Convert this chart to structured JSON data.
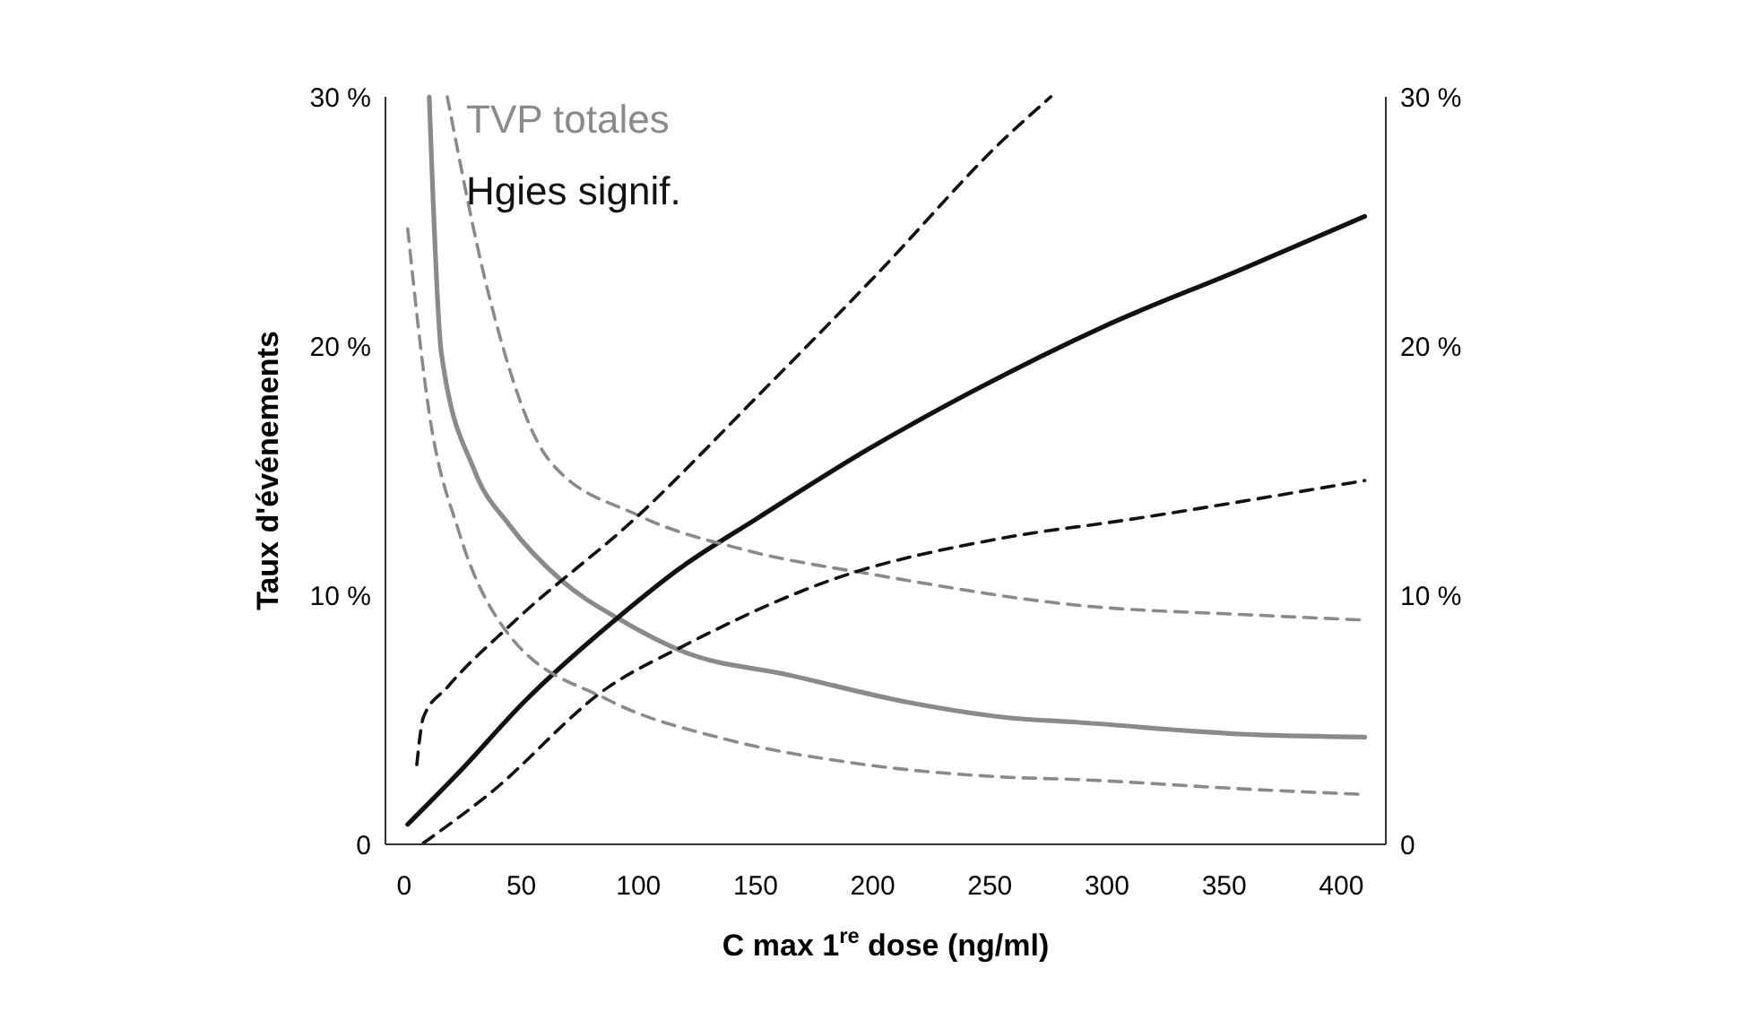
{
  "chart_data": {
    "type": "line",
    "xlabel": "C max 1$^{re}$ dose (ng/ml)",
    "ylabel": "Taux d'événements",
    "xlim": [
      -8,
      419
    ],
    "xticks": [
      0,
      50,
      100,
      150,
      200,
      250,
      300,
      350,
      400
    ],
    "ylim": [
      0,
      30
    ],
    "yticks": [
      {
        "value": 0,
        "label": "0"
      },
      {
        "value": 10,
        "label": "10 %"
      },
      {
        "value": 20,
        "label": "20 %"
      },
      {
        "value": 30,
        "label": "30 %"
      }
    ],
    "y2lim": [
      0,
      30
    ],
    "y2ticks": [
      {
        "value": 0,
        "label": "0"
      },
      {
        "value": 10,
        "label": "10 %"
      },
      {
        "value": 20,
        "label": "20 %"
      },
      {
        "value": 30,
        "label": "30 %"
      }
    ],
    "legend": "top left",
    "grid": false,
    "marker": "none",
    "series": [
      {
        "name": "TVP totales",
        "color": "#8a8a8a",
        "line_style": "solid",
        "x": [
          10.7,
          15.9,
          30,
          45,
          67,
          92.5,
          120,
          164,
          215,
          256,
          287,
          363,
          410
        ],
        "values": [
          30,
          19.7,
          15,
          12.8,
          10.6,
          9.0,
          7.7,
          6.8,
          5.7,
          5.1,
          4.9,
          4.4,
          4.3
        ]
      },
      {
        "name": "Hgies signif.",
        "color": "#111111",
        "line_style": "solid",
        "x": [
          1.5,
          23.5,
          51,
          92.5,
          118,
          151,
          197,
          243,
          299,
          358,
          410
        ],
        "values": [
          0.8,
          2.9,
          5.7,
          9.2,
          11.1,
          13.1,
          15.8,
          18.2,
          20.8,
          23.1,
          25.2
        ]
      },
      {
        "color": "#8a8a8a",
        "line_style": "dashed",
        "x": [
          18.4,
          36,
          62,
          100,
          146,
          202,
          287,
          363,
          410
        ],
        "values": [
          30,
          22.1,
          15.4,
          13.2,
          11.8,
          10.8,
          9.6,
          9.2,
          9.0
        ]
      },
      {
        "color": "#8a8a8a",
        "line_style": "dashed",
        "x": [
          1.5,
          10.7,
          23.5,
          44,
          87,
          138,
          189,
          256,
          287,
          363,
          410
        ],
        "values": [
          24.7,
          17.3,
          12.5,
          8.5,
          5.8,
          4.2,
          3.3,
          2.7,
          2.6,
          2.2,
          2.0
        ]
      },
      {
        "color": "#111111",
        "line_style": "dashed",
        "x": [
          5.4,
          8.2,
          18.4,
          46.5,
          100,
          151,
          202,
          256,
          276
        ],
        "values": [
          3.2,
          5.1,
          6.3,
          8.9,
          13.2,
          18.0,
          22.9,
          28.3,
          30
        ]
      },
      {
        "color": "#111111",
        "line_style": "dashed",
        "x": [
          8.2,
          36,
          87,
          120,
          182,
          256,
          307,
          410
        ],
        "values": [
          0.05,
          2.0,
          6.3,
          8.0,
          10.6,
          12.3,
          13.0,
          14.6
        ]
      }
    ]
  }
}
